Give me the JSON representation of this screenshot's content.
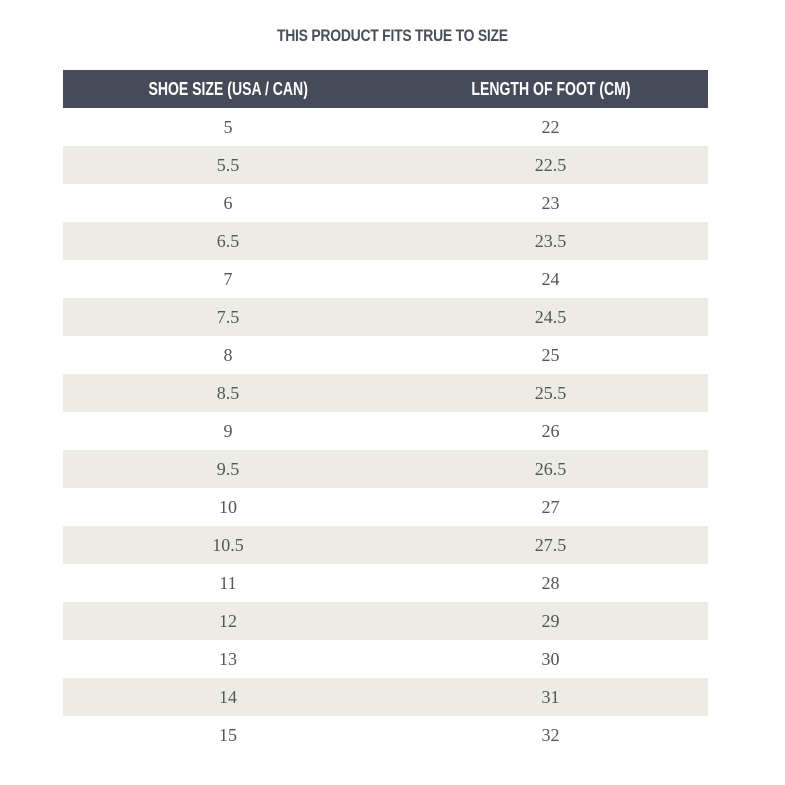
{
  "header": {
    "title": "THIS PRODUCT FITS TRUE TO SIZE"
  },
  "table": {
    "columns": [
      "SHOE SIZE (USA / CAN)",
      "LENGTH OF FOOT (CM)"
    ],
    "rows": [
      [
        "5",
        "22"
      ],
      [
        "5.5",
        "22.5"
      ],
      [
        "6",
        "23"
      ],
      [
        "6.5",
        "23.5"
      ],
      [
        "7",
        "24"
      ],
      [
        "7.5",
        "24.5"
      ],
      [
        "8",
        "25"
      ],
      [
        "8.5",
        "25.5"
      ],
      [
        "9",
        "26"
      ],
      [
        "9.5",
        "26.5"
      ],
      [
        "10",
        "27"
      ],
      [
        "10.5",
        "27.5"
      ],
      [
        "11",
        "28"
      ],
      [
        "12",
        "29"
      ],
      [
        "13",
        "30"
      ],
      [
        "14",
        "31"
      ],
      [
        "15",
        "32"
      ]
    ]
  }
}
